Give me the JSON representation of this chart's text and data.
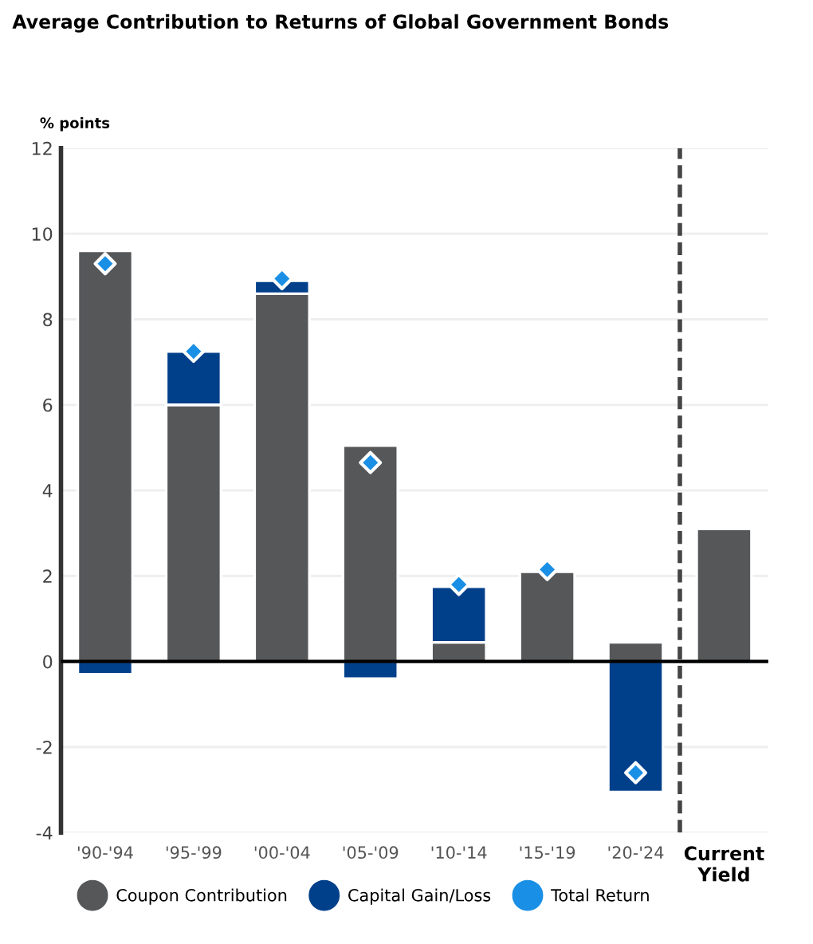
{
  "chart_data": {
    "type": "bar",
    "stacked": true,
    "title": "Average Contribution to Returns of Global Government Bonds",
    "ylabel": "% points",
    "categories": [
      "'90-'94",
      "'95-'99",
      "'00-'04",
      "'05-'09",
      "'10-'14",
      "'15-'19",
      "'20-'24",
      "Current\nYield"
    ],
    "series": [
      {
        "name": "Coupon Contribution",
        "color": "#555759",
        "values": [
          9.6,
          6.0,
          8.6,
          5.05,
          0.45,
          2.1,
          0.45,
          3.1
        ]
      },
      {
        "name": "Capital Gain/Loss",
        "color": "#003f8a",
        "values": [
          -0.3,
          1.25,
          0.3,
          -0.4,
          1.3,
          0.0,
          -3.05,
          null
        ]
      },
      {
        "name": "Total Return",
        "color": "#1a8fe6",
        "type": "scatter",
        "marker": "diamond",
        "x": [
          "'90-'94",
          "'95-'99",
          "'00-'04",
          "'05-'09",
          "'10-'14",
          "'15-'19",
          "'20-'24"
        ],
        "values": [
          9.3,
          7.25,
          8.95,
          4.65,
          1.8,
          2.15,
          -2.6
        ]
      }
    ],
    "ylim": [
      -4,
      12
    ],
    "yticks": [
      -4,
      -2,
      0,
      2,
      4,
      6,
      8,
      10,
      12
    ],
    "grid": "y",
    "legend": "bottom"
  }
}
